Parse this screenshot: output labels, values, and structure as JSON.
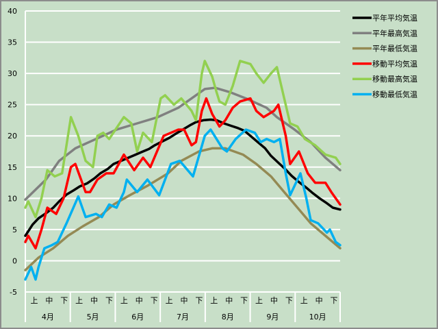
{
  "chart_data": {
    "type": "line",
    "title": "",
    "xlabel": "",
    "ylabel": "",
    "x_unit": "days since April 1",
    "xlim": [
      0,
      214
    ],
    "ylim": [
      -5,
      40
    ],
    "yticks": [
      -5,
      0,
      5,
      10,
      15,
      20,
      25,
      30,
      35,
      40
    ],
    "grid": true,
    "legend_position": "right",
    "months": [
      "4月",
      "5月",
      "6月",
      "7月",
      "8月",
      "9月",
      "10月"
    ],
    "dekads": [
      "上",
      "中",
      "下"
    ],
    "series": [
      {
        "name": "平年平均気温",
        "color": "#000000",
        "points": [
          [
            0,
            4.0
          ],
          [
            5,
            5.8
          ],
          [
            9,
            6.8
          ],
          [
            14,
            7.6
          ],
          [
            19,
            8.5
          ],
          [
            23,
            9.5
          ],
          [
            28,
            10.6
          ],
          [
            33,
            11.3
          ],
          [
            37,
            11.9
          ],
          [
            42,
            12.4
          ],
          [
            47,
            13.2
          ],
          [
            51,
            14.0
          ],
          [
            56,
            14.7
          ],
          [
            60,
            15.5
          ],
          [
            65,
            16.0
          ],
          [
            70,
            16.5
          ],
          [
            74,
            16.9
          ],
          [
            79,
            17.4
          ],
          [
            84,
            17.9
          ],
          [
            88,
            18.5
          ],
          [
            93,
            19.1
          ],
          [
            98,
            19.7
          ],
          [
            102,
            20.3
          ],
          [
            107,
            21.0
          ],
          [
            112,
            21.7
          ],
          [
            116,
            22.2
          ],
          [
            121,
            22.5
          ],
          [
            126,
            22.6
          ],
          [
            130,
            22.5
          ],
          [
            135,
            22.0
          ],
          [
            140,
            21.6
          ],
          [
            144,
            21.3
          ],
          [
            149,
            20.8
          ],
          [
            153,
            20.0
          ],
          [
            158,
            19.0
          ],
          [
            163,
            18.0
          ],
          [
            167,
            16.8
          ],
          [
            172,
            15.7
          ],
          [
            177,
            14.6
          ],
          [
            181,
            13.6
          ],
          [
            186,
            12.6
          ],
          [
            191,
            11.7
          ],
          [
            195,
            10.9
          ],
          [
            200,
            10.0
          ],
          [
            205,
            9.2
          ],
          [
            209,
            8.5
          ],
          [
            214,
            8.2
          ]
        ]
      },
      {
        "name": "平年最高気温",
        "color": "#808080",
        "points": [
          [
            0,
            9.8
          ],
          [
            14,
            13
          ],
          [
            23,
            16
          ],
          [
            34,
            18
          ],
          [
            48,
            19.5
          ],
          [
            62,
            21
          ],
          [
            76,
            22
          ],
          [
            90,
            23
          ],
          [
            104,
            24.5
          ],
          [
            113,
            26
          ],
          [
            122,
            27.5
          ],
          [
            129,
            27.7
          ],
          [
            139,
            27
          ],
          [
            150,
            26
          ],
          [
            164,
            24.5
          ],
          [
            171,
            23
          ],
          [
            183,
            21
          ],
          [
            194,
            19
          ],
          [
            204,
            16.5
          ],
          [
            214,
            14.5
          ]
        ]
      },
      {
        "name": "平年最低気温",
        "color": "#948a54",
        "points": [
          [
            0,
            -1.5
          ],
          [
            9,
            0.5
          ],
          [
            19,
            2
          ],
          [
            29,
            4
          ],
          [
            39,
            5.5
          ],
          [
            50,
            7
          ],
          [
            60,
            9
          ],
          [
            71,
            10.5
          ],
          [
            83,
            12
          ],
          [
            97,
            14
          ],
          [
            106,
            16
          ],
          [
            118,
            17.5
          ],
          [
            127,
            18
          ],
          [
            136,
            18
          ],
          [
            148,
            17
          ],
          [
            157,
            15.5
          ],
          [
            167,
            13.5
          ],
          [
            176,
            11
          ],
          [
            185,
            8.5
          ],
          [
            194,
            6
          ],
          [
            204,
            4
          ],
          [
            214,
            2
          ]
        ]
      },
      {
        "name": "移動平均気温",
        "color": "#ff0000",
        "points": [
          [
            0,
            3
          ],
          [
            2,
            4
          ],
          [
            7,
            2
          ],
          [
            11,
            5
          ],
          [
            15,
            8.5
          ],
          [
            21,
            7.5
          ],
          [
            26,
            10
          ],
          [
            31,
            15
          ],
          [
            34,
            15.5
          ],
          [
            41,
            11
          ],
          [
            44,
            11
          ],
          [
            49,
            13
          ],
          [
            55,
            14
          ],
          [
            60,
            14
          ],
          [
            67,
            17
          ],
          [
            74,
            14.5
          ],
          [
            80,
            16.5
          ],
          [
            85,
            15
          ],
          [
            94,
            20
          ],
          [
            104,
            21
          ],
          [
            108,
            21
          ],
          [
            113,
            18.5
          ],
          [
            116,
            19
          ],
          [
            120,
            24
          ],
          [
            123,
            26
          ],
          [
            127,
            23.5
          ],
          [
            132,
            21.5
          ],
          [
            136,
            22.5
          ],
          [
            141,
            24.5
          ],
          [
            146,
            25.5
          ],
          [
            153,
            26
          ],
          [
            157,
            24
          ],
          [
            162,
            23
          ],
          [
            169,
            24
          ],
          [
            172,
            25
          ],
          [
            177,
            20
          ],
          [
            180,
            15.5
          ],
          [
            186,
            17.5
          ],
          [
            192,
            14
          ],
          [
            197,
            12.5
          ],
          [
            204,
            12.5
          ],
          [
            208,
            11
          ],
          [
            214,
            9
          ]
        ]
      },
      {
        "name": "移動最高気温",
        "color": "#92d050",
        "points": [
          [
            0,
            8.5
          ],
          [
            2,
            9.5
          ],
          [
            7,
            7
          ],
          [
            11,
            10
          ],
          [
            15,
            14.5
          ],
          [
            20,
            13.5
          ],
          [
            25,
            14
          ],
          [
            27,
            17
          ],
          [
            31,
            23
          ],
          [
            36,
            20
          ],
          [
            41,
            16
          ],
          [
            46,
            15
          ],
          [
            49,
            20
          ],
          [
            53,
            20.5
          ],
          [
            57,
            19.5
          ],
          [
            67,
            23
          ],
          [
            72,
            22
          ],
          [
            76,
            17.5
          ],
          [
            80,
            20.5
          ],
          [
            86,
            19
          ],
          [
            92,
            26
          ],
          [
            95,
            26.5
          ],
          [
            101,
            25
          ],
          [
            106,
            26
          ],
          [
            113,
            24
          ],
          [
            116,
            22.5
          ],
          [
            120,
            30
          ],
          [
            122,
            32
          ],
          [
            127,
            29.5
          ],
          [
            130,
            27
          ],
          [
            132,
            25.5
          ],
          [
            136,
            25
          ],
          [
            141,
            28
          ],
          [
            146,
            32
          ],
          [
            153,
            31.5
          ],
          [
            157,
            30
          ],
          [
            162,
            28.5
          ],
          [
            167,
            30
          ],
          [
            171,
            31
          ],
          [
            176,
            26
          ],
          [
            180,
            22
          ],
          [
            185,
            21.5
          ],
          [
            190,
            19.5
          ],
          [
            197,
            18.5
          ],
          [
            204,
            17
          ],
          [
            211,
            16.5
          ],
          [
            214,
            15.5
          ]
        ]
      },
      {
        "name": "移動最低気温",
        "color": "#00b0f0",
        "points": [
          [
            0,
            -3
          ],
          [
            4,
            -1
          ],
          [
            7,
            -3
          ],
          [
            9,
            -1
          ],
          [
            13,
            2
          ],
          [
            18,
            2.5
          ],
          [
            22,
            3
          ],
          [
            28,
            6
          ],
          [
            36,
            10.3
          ],
          [
            41,
            7
          ],
          [
            48,
            7.5
          ],
          [
            52,
            7
          ],
          [
            57,
            9
          ],
          [
            62,
            8.5
          ],
          [
            67,
            11
          ],
          [
            69,
            13
          ],
          [
            76,
            11
          ],
          [
            83,
            13
          ],
          [
            91,
            10.5
          ],
          [
            99,
            15.5
          ],
          [
            105,
            16
          ],
          [
            114,
            13.5
          ],
          [
            122,
            20
          ],
          [
            126,
            21
          ],
          [
            134,
            18
          ],
          [
            137,
            17.5
          ],
          [
            143,
            19.5
          ],
          [
            150,
            21
          ],
          [
            156,
            20.5
          ],
          [
            160,
            19
          ],
          [
            164,
            19.5
          ],
          [
            169,
            19
          ],
          [
            173,
            19.5
          ],
          [
            177,
            14
          ],
          [
            180,
            10.5
          ],
          [
            184,
            12.5
          ],
          [
            187,
            14
          ],
          [
            191,
            10
          ],
          [
            194,
            6.5
          ],
          [
            199,
            6
          ],
          [
            205,
            4.5
          ],
          [
            207,
            5
          ],
          [
            211,
            3
          ],
          [
            214,
            2.5
          ]
        ]
      }
    ]
  }
}
